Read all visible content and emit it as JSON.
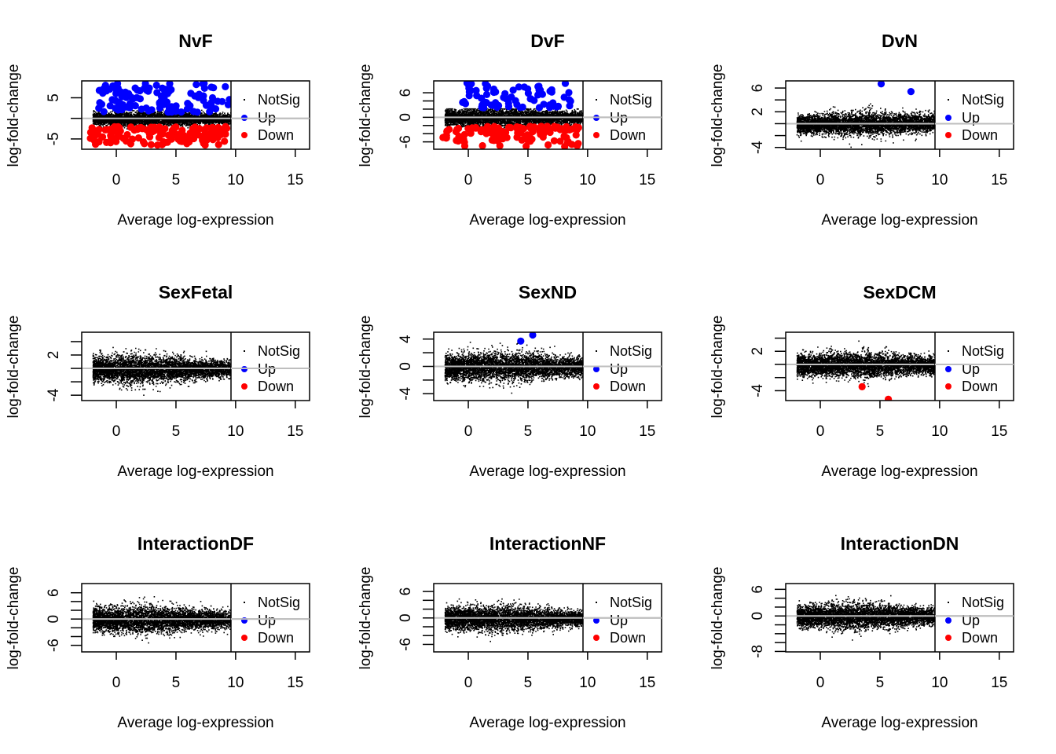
{
  "chart_data": [
    {
      "type": "scatter",
      "title": "NvF",
      "xlabel": "Average log-expression",
      "ylabel": "log-fold-change",
      "xlim": [
        -2.9,
        16.2
      ],
      "ylim": [
        -7.5,
        9.1
      ],
      "xticks": [
        0,
        5,
        10,
        15
      ],
      "yticks": [
        -5,
        0,
        5
      ],
      "yticklabels": [
        "-5",
        "",
        "5"
      ],
      "ytick_labels_shown": [
        "-5",
        "5"
      ],
      "hline": 0,
      "legend": {
        "position": "right-inside",
        "entries": [
          "NotSig",
          "Up",
          "Down"
        ]
      },
      "cloud": {
        "x_range": [
          -2,
          9.7
        ],
        "spread": 0.9,
        "peak_x": 3,
        "seed": 11
      },
      "up_band": {
        "x_range": [
          -1.5,
          9.5
        ],
        "y_range": [
          1.5,
          8.5
        ],
        "count": 110
      },
      "down_band": {
        "x_range": [
          -2.2,
          9.3
        ],
        "y_range": [
          -6.5,
          -2
        ],
        "count": 140
      },
      "series": [
        {
          "name": "NotSig",
          "color": "#000000"
        },
        {
          "name": "Up",
          "color": "#0000FF"
        },
        {
          "name": "Down",
          "color": "#FF0000"
        }
      ]
    },
    {
      "type": "scatter",
      "title": "DvF",
      "xlabel": "Average log-expression",
      "ylabel": "log-fold-change",
      "xlim": [
        -2.9,
        16.2
      ],
      "ylim": [
        -7.8,
        8.9
      ],
      "xticks": [
        0,
        5,
        10,
        15
      ],
      "yticks": [
        -6,
        -4,
        -2,
        0,
        2,
        4,
        6
      ],
      "ytick_labels_shown": [
        "-6",
        "0",
        "6"
      ],
      "hline": 0,
      "legend": {
        "position": "right-inside",
        "entries": [
          "NotSig",
          "Up",
          "Down"
        ]
      },
      "cloud": {
        "x_range": [
          -2,
          9.7
        ],
        "spread": 1.2,
        "peak_x": 3,
        "seed": 23
      },
      "up_band": {
        "x_range": [
          -0.5,
          8.7
        ],
        "y_range": [
          2.3,
          8.5
        ],
        "count": 75
      },
      "down_band": {
        "x_range": [
          -2.2,
          9.3
        ],
        "y_range": [
          -7.2,
          -2.2
        ],
        "count": 120
      },
      "series": [
        {
          "name": "NotSig",
          "color": "#000000"
        },
        {
          "name": "Up",
          "color": "#0000FF"
        },
        {
          "name": "Down",
          "color": "#FF0000"
        }
      ]
    },
    {
      "type": "scatter",
      "title": "DvN",
      "xlabel": "Average log-expression",
      "ylabel": "log-fold-change",
      "xlim": [
        -2.9,
        16.2
      ],
      "ylim": [
        -4.3,
        7.2
      ],
      "xticks": [
        0,
        5,
        10,
        15
      ],
      "yticks": [
        -4,
        -2,
        0,
        2,
        4,
        6
      ],
      "ytick_labels_shown": [
        "-4",
        "2",
        "6"
      ],
      "hline": 0,
      "legend": {
        "position": "right-inside",
        "entries": [
          "NotSig",
          "Up",
          "Down"
        ]
      },
      "cloud": {
        "x_range": [
          -2,
          9.7
        ],
        "spread": 1.0,
        "peak_x": 4,
        "seed": 37,
        "skew_up": 0.6
      },
      "up_points": [
        [
          5.1,
          6.7
        ],
        [
          7.6,
          5.4
        ]
      ],
      "down_points": [],
      "series": [
        {
          "name": "NotSig",
          "color": "#000000"
        },
        {
          "name": "Up",
          "color": "#0000FF"
        },
        {
          "name": "Down",
          "color": "#FF0000"
        }
      ]
    },
    {
      "type": "scatter",
      "title": "SexFetal",
      "xlabel": "Average log-expression",
      "ylabel": "log-fold-change",
      "xlim": [
        -2.9,
        16.2
      ],
      "ylim": [
        -4.8,
        5.4
      ],
      "xticks": [
        0,
        5,
        10,
        15
      ],
      "yticks": [
        -4,
        -2,
        0,
        2,
        4
      ],
      "ytick_labels_shown": [
        "-4",
        "2"
      ],
      "hline": 0,
      "legend": {
        "position": "right-inside",
        "entries": [
          "NotSig",
          "Up",
          "Down"
        ]
      },
      "cloud": {
        "x_range": [
          -2,
          9.7
        ],
        "spread": 1.1,
        "peak_x": 1.5,
        "seed": 41
      },
      "up_points": [],
      "down_points": [],
      "series": [
        {
          "name": "NotSig",
          "color": "#000000"
        },
        {
          "name": "Up",
          "color": "#0000FF"
        },
        {
          "name": "Down",
          "color": "#FF0000"
        }
      ]
    },
    {
      "type": "scatter",
      "title": "SexND",
      "xlabel": "Average log-expression",
      "ylabel": "log-fold-change",
      "xlim": [
        -2.9,
        16.2
      ],
      "ylim": [
        -5.0,
        5.0
      ],
      "xticks": [
        0,
        5,
        10,
        15
      ],
      "yticks": [
        -4,
        -2,
        0,
        2,
        4
      ],
      "ytick_labels_shown": [
        "-4",
        "0",
        "4"
      ],
      "hline": 0,
      "legend": {
        "position": "right-inside",
        "entries": [
          "NotSig",
          "Up",
          "Down"
        ]
      },
      "cloud": {
        "x_range": [
          -2,
          9.7
        ],
        "spread": 1.1,
        "peak_x": 3,
        "seed": 53
      },
      "up_points": [
        [
          4.4,
          3.7
        ],
        [
          5.4,
          4.6
        ]
      ],
      "down_points": [],
      "series": [
        {
          "name": "NotSig",
          "color": "#000000"
        },
        {
          "name": "Up",
          "color": "#0000FF"
        },
        {
          "name": "Down",
          "color": "#FF0000"
        }
      ]
    },
    {
      "type": "scatter",
      "title": "SexDCM",
      "xlabel": "Average log-expression",
      "ylabel": "log-fold-change",
      "xlim": [
        -2.9,
        16.2
      ],
      "ylim": [
        -5.5,
        4.9
      ],
      "xticks": [
        0,
        5,
        10,
        15
      ],
      "yticks": [
        -4,
        -2,
        0,
        2,
        4
      ],
      "ytick_labels_shown": [
        "-4",
        "2"
      ],
      "hline": 0,
      "legend": {
        "position": "right-inside",
        "entries": [
          "NotSig",
          "Up",
          "Down"
        ]
      },
      "cloud": {
        "x_range": [
          -2,
          9.7
        ],
        "spread": 1.0,
        "peak_x": 3.5,
        "seed": 67
      },
      "up_points": [],
      "down_points": [
        [
          3.5,
          -3.4
        ],
        [
          5.7,
          -5.3
        ]
      ],
      "series": [
        {
          "name": "NotSig",
          "color": "#000000"
        },
        {
          "name": "Up",
          "color": "#0000FF"
        },
        {
          "name": "Down",
          "color": "#FF0000"
        }
      ]
    },
    {
      "type": "scatter",
      "title": "InteractionDF",
      "xlabel": "Average log-expression",
      "ylabel": "log-fold-change",
      "xlim": [
        -2.9,
        16.2
      ],
      "ylim": [
        -7.5,
        8.1
      ],
      "xticks": [
        0,
        5,
        10,
        15
      ],
      "yticks": [
        -6,
        -4,
        -2,
        0,
        2,
        4,
        6
      ],
      "ytick_labels_shown": [
        "-6",
        "0",
        "6"
      ],
      "hline": 0,
      "legend": {
        "position": "right-inside",
        "entries": [
          "NotSig",
          "Up",
          "Down"
        ]
      },
      "cloud": {
        "x_range": [
          -2,
          9.7
        ],
        "spread": 1.6,
        "peak_x": 2,
        "seed": 71
      },
      "up_points": [],
      "down_points": [],
      "series": [
        {
          "name": "NotSig",
          "color": "#000000"
        },
        {
          "name": "Up",
          "color": "#0000FF"
        },
        {
          "name": "Down",
          "color": "#FF0000"
        }
      ]
    },
    {
      "type": "scatter",
      "title": "InteractionNF",
      "xlabel": "Average log-expression",
      "ylabel": "log-fold-change",
      "xlim": [
        -2.9,
        16.2
      ],
      "ylim": [
        -7.7,
        7.8
      ],
      "xticks": [
        0,
        5,
        10,
        15
      ],
      "yticks": [
        -6,
        -4,
        -2,
        0,
        2,
        4,
        6
      ],
      "ytick_labels_shown": [
        "-6",
        "0",
        "6"
      ],
      "hline": 0,
      "legend": {
        "position": "right-inside",
        "entries": [
          "NotSig",
          "Up",
          "Down"
        ]
      },
      "cloud": {
        "x_range": [
          -2,
          9.7
        ],
        "spread": 1.5,
        "peak_x": 2,
        "seed": 83
      },
      "up_points": [],
      "down_points": [],
      "series": [
        {
          "name": "NotSig",
          "color": "#000000"
        },
        {
          "name": "Up",
          "color": "#0000FF"
        },
        {
          "name": "Down",
          "color": "#FF0000"
        }
      ]
    },
    {
      "type": "scatter",
      "title": "InteractionDN",
      "xlabel": "Average log-expression",
      "ylabel": "log-fold-change",
      "xlim": [
        -2.9,
        16.2
      ],
      "ylim": [
        -8.1,
        7.3
      ],
      "xticks": [
        0,
        5,
        10,
        15
      ],
      "yticks": [
        -8,
        -6,
        -4,
        -2,
        0,
        2,
        4,
        6
      ],
      "ytick_labels_shown": [
        "-8",
        "0",
        "6"
      ],
      "hline": 0,
      "legend": {
        "position": "right-inside",
        "entries": [
          "NotSig",
          "Up",
          "Down"
        ]
      },
      "cloud": {
        "x_range": [
          -2,
          9.7
        ],
        "spread": 1.5,
        "peak_x": 3,
        "seed": 97
      },
      "up_points": [],
      "down_points": [],
      "series": [
        {
          "name": "NotSig",
          "color": "#000000"
        },
        {
          "name": "Up",
          "color": "#0000FF"
        },
        {
          "name": "Down",
          "color": "#FF0000"
        }
      ]
    }
  ],
  "shared": {
    "xlabel": "Average log-expression",
    "ylabel": "log-fold-change",
    "legend_labels": [
      "NotSig",
      "Up",
      "Down"
    ],
    "colors": {
      "notsig": "#000000",
      "up": "#0000FF",
      "down": "#FF0000",
      "hline": "#BEBEBE"
    }
  }
}
